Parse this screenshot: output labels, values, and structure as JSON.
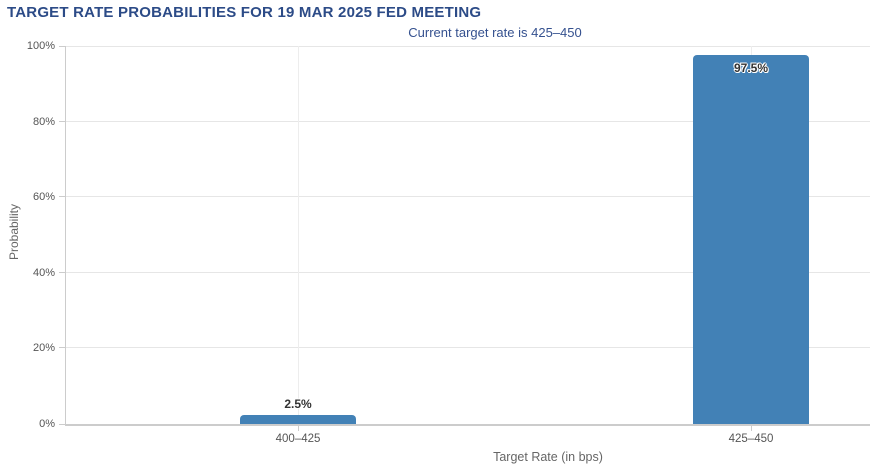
{
  "chart_data": {
    "type": "bar",
    "title": "TARGET RATE PROBABILITIES FOR 19 MAR 2025 FED MEETING",
    "subtitle": "Current target rate is 425–450",
    "xlabel": "Target Rate (in bps)",
    "ylabel": "Probability",
    "categories": [
      "400–425",
      "425–450"
    ],
    "values": [
      2.5,
      97.5
    ],
    "value_labels": [
      "2.5%",
      "97.5%"
    ],
    "ylim": [
      0,
      100
    ],
    "ytick_labels": [
      "0%",
      "20%",
      "40%",
      "60%",
      "80%",
      "100%"
    ],
    "grid": "horizontal",
    "legend": "none",
    "colors": {
      "bar": "#4281b6",
      "title": "#2c4b87",
      "subtitle": "#35518f",
      "gridline": "#e6e6e6",
      "axis": "#cccccc",
      "tick_text": "#555555",
      "axis_title_text": "#666666"
    }
  }
}
